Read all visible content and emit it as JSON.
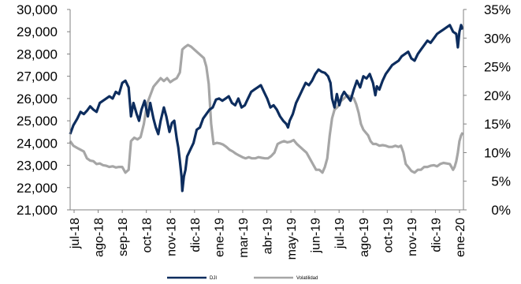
{
  "chart_data": {
    "type": "line",
    "title": "",
    "colors": {
      "dji": "#0d2d5e",
      "volatility": "#a6a6a6"
    },
    "y_left": {
      "ylim": [
        21000,
        30000
      ],
      "ticks": [
        "21,000",
        "22,000",
        "23,000",
        "24,000",
        "25,000",
        "26,000",
        "27,000",
        "28,000",
        "29,000",
        "30,000"
      ]
    },
    "y_right": {
      "ylim": [
        0,
        35
      ],
      "ticks": [
        "0%",
        "5%",
        "10%",
        "15%",
        "20%",
        "25%",
        "30%",
        "35%"
      ]
    },
    "x_ticks": [
      "jul-18",
      "ago-18",
      "sep-18",
      "oct-18",
      "nov-18",
      "dic-18",
      "ene-19",
      "mar-19",
      "abr-19",
      "may-19",
      "jun-19",
      "jul-19",
      "ago-19",
      "oct-19",
      "nov-19",
      "dic-19",
      "ene-20"
    ],
    "series": [
      {
        "name": "DJI",
        "axis": "left",
        "points": [
          [
            0,
            24400
          ],
          [
            4,
            24800
          ],
          [
            9,
            25100
          ],
          [
            13,
            25400
          ],
          [
            17,
            25300
          ],
          [
            21,
            25450
          ],
          [
            25,
            25650
          ],
          [
            29,
            25500
          ],
          [
            33,
            25400
          ],
          [
            37,
            25800
          ],
          [
            41,
            25900
          ],
          [
            45,
            26000
          ],
          [
            49,
            26100
          ],
          [
            53,
            26000
          ],
          [
            57,
            26300
          ],
          [
            61,
            26200
          ],
          [
            65,
            26700
          ],
          [
            69,
            26800
          ],
          [
            73,
            26500
          ],
          [
            76,
            25200
          ],
          [
            79,
            25800
          ],
          [
            83,
            25300
          ],
          [
            86,
            25000
          ],
          [
            89,
            25500
          ],
          [
            93,
            25900
          ],
          [
            97,
            25200
          ],
          [
            100,
            25800
          ],
          [
            104,
            25100
          ],
          [
            107,
            24700
          ],
          [
            110,
            24400
          ],
          [
            113,
            25000
          ],
          [
            117,
            25600
          ],
          [
            120,
            25200
          ],
          [
            124,
            24500
          ],
          [
            127,
            24900
          ],
          [
            130,
            25000
          ],
          [
            133,
            24200
          ],
          [
            135,
            23800
          ],
          [
            137,
            23200
          ],
          [
            139,
            22500
          ],
          [
            140,
            21850
          ],
          [
            142,
            22500
          ],
          [
            144,
            22800
          ],
          [
            146,
            23400
          ],
          [
            150,
            23700
          ],
          [
            154,
            24000
          ],
          [
            158,
            24600
          ],
          [
            162,
            24700
          ],
          [
            166,
            25100
          ],
          [
            170,
            25300
          ],
          [
            174,
            25500
          ],
          [
            178,
            25600
          ],
          [
            182,
            25950
          ],
          [
            186,
            26000
          ],
          [
            190,
            25900
          ],
          [
            194,
            26000
          ],
          [
            198,
            26100
          ],
          [
            202,
            25800
          ],
          [
            206,
            25700
          ],
          [
            210,
            26000
          ],
          [
            214,
            25600
          ],
          [
            218,
            25700
          ],
          [
            222,
            26000
          ],
          [
            226,
            26300
          ],
          [
            230,
            26400
          ],
          [
            234,
            26500
          ],
          [
            238,
            26600
          ],
          [
            242,
            26300
          ],
          [
            246,
            26000
          ],
          [
            250,
            25600
          ],
          [
            254,
            25700
          ],
          [
            258,
            25500
          ],
          [
            262,
            25200
          ],
          [
            266,
            25000
          ],
          [
            270,
            24850
          ],
          [
            272,
            24700
          ],
          [
            274,
            25000
          ],
          [
            278,
            25300
          ],
          [
            282,
            25800
          ],
          [
            286,
            26100
          ],
          [
            290,
            26400
          ],
          [
            294,
            26700
          ],
          [
            298,
            26600
          ],
          [
            302,
            26800
          ],
          [
            306,
            27100
          ],
          [
            310,
            27300
          ],
          [
            314,
            27200
          ],
          [
            318,
            27150
          ],
          [
            322,
            27000
          ],
          [
            325,
            26700
          ],
          [
            327,
            26000
          ],
          [
            330,
            25600
          ],
          [
            333,
            26200
          ],
          [
            336,
            25700
          ],
          [
            339,
            26100
          ],
          [
            342,
            26300
          ],
          [
            346,
            26100
          ],
          [
            350,
            25900
          ],
          [
            354,
            26400
          ],
          [
            358,
            26800
          ],
          [
            362,
            26500
          ],
          [
            366,
            27000
          ],
          [
            370,
            26900
          ],
          [
            374,
            27100
          ],
          [
            378,
            26700
          ],
          [
            381,
            26150
          ],
          [
            383,
            26550
          ],
          [
            386,
            26400
          ],
          [
            390,
            26800
          ],
          [
            394,
            27100
          ],
          [
            398,
            27300
          ],
          [
            402,
            27500
          ],
          [
            406,
            27600
          ],
          [
            410,
            27700
          ],
          [
            414,
            27900
          ],
          [
            418,
            28000
          ],
          [
            422,
            28100
          ],
          [
            426,
            27800
          ],
          [
            430,
            27700
          ],
          [
            434,
            28000
          ],
          [
            438,
            28200
          ],
          [
            442,
            28400
          ],
          [
            446,
            28600
          ],
          [
            450,
            28500
          ],
          [
            454,
            28700
          ],
          [
            458,
            28900
          ],
          [
            462,
            29000
          ],
          [
            466,
            29100
          ],
          [
            470,
            29200
          ],
          [
            474,
            29300
          ],
          [
            478,
            29000
          ],
          [
            482,
            28900
          ],
          [
            484,
            28300
          ],
          [
            486,
            29000
          ],
          [
            488,
            29300
          ],
          [
            490,
            29100
          ]
        ]
      },
      {
        "name": "Volatilidad",
        "axis": "right",
        "points": [
          [
            0,
            12.0
          ],
          [
            4,
            11.2
          ],
          [
            9,
            10.8
          ],
          [
            13,
            10.5
          ],
          [
            17,
            10.2
          ],
          [
            21,
            9.0
          ],
          [
            25,
            8.6
          ],
          [
            29,
            8.5
          ],
          [
            33,
            8.0
          ],
          [
            37,
            8.1
          ],
          [
            41,
            7.8
          ],
          [
            45,
            7.7
          ],
          [
            49,
            7.5
          ],
          [
            53,
            7.6
          ],
          [
            57,
            7.4
          ],
          [
            61,
            7.5
          ],
          [
            65,
            7.5
          ],
          [
            69,
            6.5
          ],
          [
            73,
            7.0
          ],
          [
            76,
            12.0
          ],
          [
            80,
            12.6
          ],
          [
            84,
            12.3
          ],
          [
            88,
            12.7
          ],
          [
            92,
            15.0
          ],
          [
            96,
            18.5
          ],
          [
            100,
            20.0
          ],
          [
            104,
            21.5
          ],
          [
            107,
            22.0
          ],
          [
            110,
            22.5
          ],
          [
            113,
            23.0
          ],
          [
            117,
            22.5
          ],
          [
            121,
            23.0
          ],
          [
            125,
            22.3
          ],
          [
            129,
            22.7
          ],
          [
            133,
            23.0
          ],
          [
            137,
            24.0
          ],
          [
            140,
            28.0
          ],
          [
            143,
            28.4
          ],
          [
            147,
            28.8
          ],
          [
            151,
            28.5
          ],
          [
            155,
            28.0
          ],
          [
            159,
            27.5
          ],
          [
            163,
            27.0
          ],
          [
            167,
            26.5
          ],
          [
            170,
            25.0
          ],
          [
            173,
            22.0
          ],
          [
            176,
            15.0
          ],
          [
            179,
            11.5
          ],
          [
            183,
            11.7
          ],
          [
            187,
            11.6
          ],
          [
            191,
            11.4
          ],
          [
            195,
            11.0
          ],
          [
            199,
            10.5
          ],
          [
            203,
            10.2
          ],
          [
            207,
            9.8
          ],
          [
            211,
            9.5
          ],
          [
            215,
            9.2
          ],
          [
            219,
            9.0
          ],
          [
            223,
            9.2
          ],
          [
            227,
            9.0
          ],
          [
            231,
            9.0
          ],
          [
            235,
            9.2
          ],
          [
            239,
            9.1
          ],
          [
            243,
            9.0
          ],
          [
            247,
            9.0
          ],
          [
            251,
            9.4
          ],
          [
            255,
            10.0
          ],
          [
            259,
            11.5
          ],
          [
            263,
            11.8
          ],
          [
            267,
            12.0
          ],
          [
            271,
            11.8
          ],
          [
            275,
            11.9
          ],
          [
            279,
            12.2
          ],
          [
            283,
            11.5
          ],
          [
            287,
            11.0
          ],
          [
            291,
            10.5
          ],
          [
            295,
            10.0
          ],
          [
            299,
            9.0
          ],
          [
            303,
            8.0
          ],
          [
            307,
            7.0
          ],
          [
            311,
            7.0
          ],
          [
            315,
            6.5
          ],
          [
            318,
            7.5
          ],
          [
            321,
            9.0
          ],
          [
            324,
            13.0
          ],
          [
            327,
            16.0
          ],
          [
            330,
            17.5
          ],
          [
            334,
            18.0
          ],
          [
            338,
            19.0
          ],
          [
            342,
            19.5
          ],
          [
            346,
            20.0
          ],
          [
            350,
            19.8
          ],
          [
            354,
            19.5
          ],
          [
            357,
            18.5
          ],
          [
            360,
            17.0
          ],
          [
            363,
            15.0
          ],
          [
            366,
            14.0
          ],
          [
            369,
            13.5
          ],
          [
            372,
            13.0
          ],
          [
            375,
            12.0
          ],
          [
            378,
            11.5
          ],
          [
            382,
            11.5
          ],
          [
            386,
            11.2
          ],
          [
            390,
            11.3
          ],
          [
            394,
            11.2
          ],
          [
            398,
            11.0
          ],
          [
            402,
            11.0
          ],
          [
            406,
            11.2
          ],
          [
            410,
            11.0
          ],
          [
            413,
            11.2
          ],
          [
            416,
            10.0
          ],
          [
            419,
            8.0
          ],
          [
            422,
            7.5
          ],
          [
            426,
            6.8
          ],
          [
            430,
            6.5
          ],
          [
            434,
            7.0
          ],
          [
            438,
            7.0
          ],
          [
            442,
            7.5
          ],
          [
            446,
            7.5
          ],
          [
            450,
            7.7
          ],
          [
            454,
            7.8
          ],
          [
            458,
            7.6
          ],
          [
            462,
            8.0
          ],
          [
            466,
            8.2
          ],
          [
            470,
            8.1
          ],
          [
            474,
            8.0
          ],
          [
            476,
            7.5
          ],
          [
            478,
            7.0
          ],
          [
            480,
            7.5
          ],
          [
            482,
            8.5
          ],
          [
            484,
            10.0
          ],
          [
            486,
            12.0
          ],
          [
            488,
            13.0
          ],
          [
            490,
            13.5
          ]
        ]
      }
    ],
    "legend": {
      "placement": "bottom"
    },
    "grid": false
  }
}
